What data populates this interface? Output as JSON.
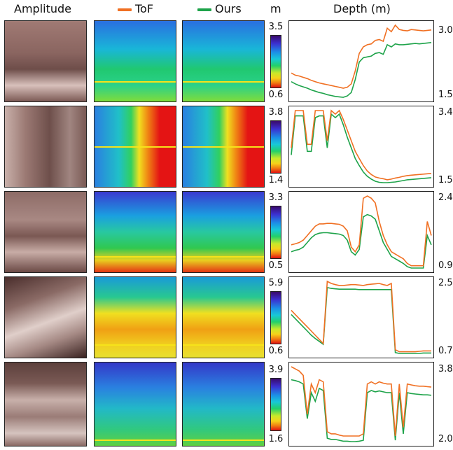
{
  "header": {
    "amplitude": "Amplitude",
    "tof": "ToF",
    "ours": "Ours",
    "unit": "m",
    "depth": "Depth (m)"
  },
  "colors": {
    "tof": "#f07023",
    "ours": "#1ea34a",
    "highlight": "#f6e31a"
  },
  "rows": [
    {
      "cbar_max": "3.5",
      "cbar_min": "0.6",
      "y_max": "3.0",
      "y_min": "1.5",
      "tof": [
        1.95,
        1.9,
        1.88,
        1.85,
        1.82,
        1.78,
        1.75,
        1.72,
        1.7,
        1.68,
        1.66,
        1.64,
        1.62,
        1.6,
        1.62,
        1.7,
        2.0,
        2.4,
        2.55,
        2.6,
        2.62,
        2.7,
        2.72,
        2.68,
        2.98,
        2.9,
        3.05,
        2.95,
        2.93,
        2.92,
        2.95,
        2.94,
        2.93,
        2.92,
        2.93,
        2.94
      ],
      "ours": [
        1.75,
        1.7,
        1.66,
        1.63,
        1.6,
        1.56,
        1.53,
        1.5,
        1.48,
        1.45,
        1.43,
        1.41,
        1.4,
        1.39,
        1.42,
        1.5,
        1.8,
        2.2,
        2.3,
        2.32,
        2.34,
        2.4,
        2.42,
        2.38,
        2.6,
        2.55,
        2.62,
        2.6,
        2.6,
        2.61,
        2.62,
        2.63,
        2.62,
        2.63,
        2.64,
        2.65
      ]
    },
    {
      "cbar_max": "3.8",
      "cbar_min": "1.4",
      "y_max": "3.4",
      "y_min": "1.5",
      "tof": [
        2.4,
        3.45,
        3.45,
        3.45,
        2.5,
        2.5,
        3.45,
        3.45,
        3.45,
        2.6,
        3.45,
        3.35,
        3.45,
        3.2,
        2.9,
        2.6,
        2.3,
        2.1,
        1.9,
        1.75,
        1.65,
        1.58,
        1.55,
        1.53,
        1.5,
        1.52,
        1.55,
        1.57,
        1.6,
        1.62,
        1.63,
        1.64,
        1.65,
        1.66,
        1.67,
        1.68
      ],
      "ours": [
        2.2,
        3.3,
        3.3,
        3.3,
        2.3,
        2.3,
        3.25,
        3.3,
        3.3,
        2.4,
        3.35,
        3.25,
        3.35,
        3.05,
        2.7,
        2.4,
        2.1,
        1.9,
        1.72,
        1.6,
        1.52,
        1.46,
        1.43,
        1.42,
        1.42,
        1.43,
        1.44,
        1.46,
        1.48,
        1.5,
        1.51,
        1.52,
        1.53,
        1.54,
        1.55,
        1.56
      ]
    },
    {
      "cbar_max": "3.3",
      "cbar_min": "0.5",
      "y_max": "2.4",
      "y_min": "0.9",
      "tof": [
        1.4,
        1.42,
        1.45,
        1.5,
        1.6,
        1.7,
        1.8,
        1.85,
        1.85,
        1.86,
        1.86,
        1.85,
        1.84,
        1.8,
        1.7,
        1.35,
        1.25,
        1.4,
        2.4,
        2.45,
        2.4,
        2.3,
        1.9,
        1.6,
        1.4,
        1.25,
        1.2,
        1.15,
        1.1,
        1.0,
        0.95,
        0.95,
        0.95,
        0.95,
        1.9,
        1.6
      ],
      "ours": [
        1.25,
        1.28,
        1.3,
        1.35,
        1.45,
        1.55,
        1.62,
        1.65,
        1.66,
        1.66,
        1.65,
        1.64,
        1.63,
        1.6,
        1.5,
        1.25,
        1.18,
        1.3,
        2.0,
        2.05,
        2.02,
        1.95,
        1.7,
        1.45,
        1.3,
        1.15,
        1.1,
        1.05,
        1.0,
        0.93,
        0.9,
        0.9,
        0.9,
        0.9,
        1.6,
        1.4
      ]
    },
    {
      "cbar_max": "5.9",
      "cbar_min": "0.6",
      "y_max": "2.5",
      "y_min": "0.7",
      "tof": [
        1.8,
        1.7,
        1.6,
        1.5,
        1.4,
        1.3,
        1.2,
        1.1,
        1.0,
        2.5,
        2.45,
        2.42,
        2.4,
        2.4,
        2.41,
        2.42,
        2.42,
        2.41,
        2.4,
        2.42,
        2.43,
        2.44,
        2.45,
        2.42,
        2.4,
        2.45,
        0.85,
        0.8,
        0.8,
        0.8,
        0.8,
        0.8,
        0.81,
        0.82,
        0.82,
        0.82
      ],
      "ours": [
        1.7,
        1.6,
        1.5,
        1.4,
        1.3,
        1.2,
        1.12,
        1.05,
        0.98,
        2.35,
        2.33,
        2.32,
        2.31,
        2.31,
        2.31,
        2.31,
        2.31,
        2.3,
        2.3,
        2.3,
        2.3,
        2.3,
        2.3,
        2.3,
        2.3,
        2.3,
        0.78,
        0.76,
        0.76,
        0.76,
        0.76,
        0.76,
        0.76,
        0.77,
        0.77,
        0.77
      ]
    },
    {
      "cbar_max": "3.9",
      "cbar_min": "1.6",
      "y_max": "3.8",
      "y_min": "2.0",
      "tof": [
        3.8,
        3.75,
        3.7,
        3.6,
        2.7,
        3.4,
        3.2,
        3.5,
        3.45,
        2.3,
        2.25,
        2.25,
        2.22,
        2.2,
        2.2,
        2.2,
        2.2,
        2.2,
        2.25,
        3.4,
        3.45,
        3.4,
        3.45,
        3.42,
        3.4,
        3.4,
        2.2,
        3.4,
        2.4,
        3.4,
        3.38,
        3.36,
        3.35,
        3.35,
        3.34,
        3.33
      ],
      "ours": [
        3.5,
        3.48,
        3.45,
        3.4,
        2.6,
        3.2,
        3.0,
        3.3,
        3.25,
        2.15,
        2.12,
        2.12,
        2.1,
        2.08,
        2.08,
        2.07,
        2.07,
        2.08,
        2.1,
        3.2,
        3.25,
        3.22,
        3.24,
        3.22,
        3.2,
        3.2,
        2.1,
        3.2,
        2.25,
        3.2,
        3.18,
        3.17,
        3.16,
        3.15,
        3.15,
        3.14
      ]
    }
  ]
}
